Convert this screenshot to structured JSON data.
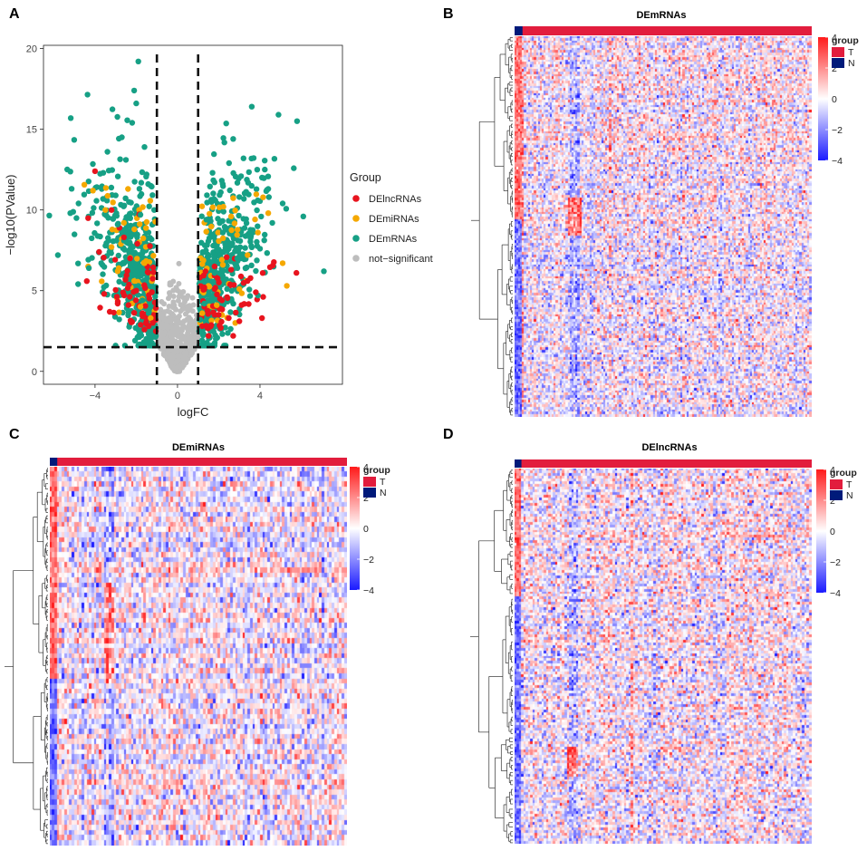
{
  "panels": {
    "A": "A",
    "B": "B",
    "C": "C",
    "D": "D"
  },
  "chart_data": [
    {
      "id": "A",
      "type": "scatter",
      "subtype": "volcano",
      "xlabel": "logFC",
      "ylabel": "−log10(PValue)",
      "xlim": [
        -6.5,
        8
      ],
      "ylim": [
        -0.8,
        20.2
      ],
      "xticks": [
        -4,
        0,
        4
      ],
      "xtick_labels": [
        "−4",
        "0",
        "4"
      ],
      "yticks": [
        0,
        5,
        10,
        15,
        20
      ],
      "ytick_labels": [
        "0",
        "5",
        "10",
        "15",
        "20"
      ],
      "thresholds": {
        "logFC": [
          -1,
          1
        ],
        "neg_log10_p": 1.5
      },
      "legend": {
        "title": "Group",
        "position": "right",
        "entries": [
          {
            "label": "DElncRNAs",
            "color": "#e8141e"
          },
          {
            "label": "DEmiRNAs",
            "color": "#f5a800"
          },
          {
            "label": "DEmRNAs",
            "color": "#16a085"
          },
          {
            "label": "not−significant",
            "color": "#bdbdbd"
          }
        ]
      },
      "series": [
        {
          "name": "DEmRNAs",
          "color": "#16a085",
          "points": [
            [
              -5.8,
              7.2
            ],
            [
              -5.2,
              9.8
            ],
            [
              -4.9,
              9.5
            ],
            [
              -4.8,
              10.4
            ],
            [
              -4.3,
              6.4
            ],
            [
              -3.6,
              12.3
            ],
            [
              -3.4,
              13.6
            ],
            [
              -3.0,
              10.9
            ],
            [
              -2.7,
              14.5
            ],
            [
              -2.5,
              13.1
            ],
            [
              -2.2,
              15.4
            ],
            [
              -2.1,
              17.4
            ],
            [
              -1.9,
              19.2
            ],
            [
              -2.0,
              16.6
            ],
            [
              -1.6,
              13.9
            ],
            [
              -1.5,
              12.2
            ],
            [
              -1.3,
              11.5
            ],
            [
              -2.6,
              8.1
            ],
            [
              -2.3,
              6.9
            ],
            [
              -1.9,
              5.3
            ],
            [
              -1.7,
              4.4
            ],
            [
              -1.4,
              3.6
            ],
            [
              -1.2,
              2.9
            ],
            [
              -3.3,
              7.4
            ],
            [
              -2.9,
              9.1
            ],
            [
              -1.8,
              9.7
            ],
            [
              1.4,
              9.4
            ],
            [
              1.7,
              12.3
            ],
            [
              2.1,
              11.1
            ],
            [
              2.5,
              12.9
            ],
            [
              2.7,
              14.4
            ],
            [
              3.2,
              13.2
            ],
            [
              3.6,
              16.4
            ],
            [
              4.1,
              12.0
            ],
            [
              4.4,
              11.3
            ],
            [
              4.6,
              9.2
            ],
            [
              4.9,
              15.9
            ],
            [
              5.1,
              10.4
            ],
            [
              5.8,
              15.5
            ],
            [
              6.1,
              9.6
            ],
            [
              7.1,
              6.2
            ],
            [
              3.0,
              10.8
            ],
            [
              2.2,
              8.6
            ],
            [
              1.8,
              6.1
            ],
            [
              2.4,
              5.1
            ],
            [
              1.3,
              4.2
            ],
            [
              1.1,
              3.2
            ],
            [
              3.3,
              6.4
            ],
            [
              4.0,
              7.6
            ],
            [
              2.9,
              7.0
            ],
            [
              3.9,
              4.7
            ]
          ]
        },
        {
          "name": "DEmiRNAs",
          "color": "#f5a800",
          "points": [
            [
              -4.1,
              11.2
            ],
            [
              -3.5,
              10.0
            ],
            [
              -3.2,
              7.7
            ],
            [
              -2.9,
              6.2
            ],
            [
              -2.6,
              9.2
            ],
            [
              -2.4,
              11.3
            ],
            [
              -2.1,
              5.6
            ],
            [
              -1.8,
              4.0
            ],
            [
              -1.6,
              6.7
            ],
            [
              -1.3,
              3.3
            ],
            [
              1.2,
              3.6
            ],
            [
              1.5,
              5.3
            ],
            [
              1.9,
              4.1
            ],
            [
              2.2,
              6.6
            ],
            [
              2.6,
              9.6
            ],
            [
              3.0,
              5.1
            ],
            [
              3.4,
              7.2
            ],
            [
              3.9,
              8.6
            ],
            [
              4.4,
              9.8
            ],
            [
              5.1,
              6.7
            ],
            [
              5.3,
              5.3
            ],
            [
              2.8,
              3.0
            ]
          ]
        },
        {
          "name": "DElncRNAs",
          "color": "#e8141e",
          "points": [
            [
              -4.0,
              12.4
            ],
            [
              -3.8,
              7.4
            ],
            [
              -3.2,
              10.0
            ],
            [
              -2.9,
              4.2
            ],
            [
              -2.6,
              8.3
            ],
            [
              -2.3,
              7.0
            ],
            [
              -2.0,
              5.0
            ],
            [
              -1.7,
              3.6
            ],
            [
              -1.4,
              2.8
            ],
            [
              -1.2,
              3.0
            ],
            [
              1.2,
              2.8
            ],
            [
              1.5,
              2.2
            ],
            [
              1.8,
              3.5
            ],
            [
              2.1,
              2.7
            ],
            [
              2.4,
              4.6
            ],
            [
              2.7,
              2.2
            ],
            [
              3.0,
              3.1
            ],
            [
              3.4,
              5.6
            ],
            [
              3.8,
              4.9
            ],
            [
              4.1,
              3.3
            ],
            [
              1.3,
              5.2
            ],
            [
              2.6,
              6.3
            ]
          ]
        }
      ]
    },
    {
      "id": "B",
      "type": "heatmap",
      "title": "DEmRNAs",
      "color_scale": {
        "min": -4,
        "max": 4,
        "colors": [
          "#1a1aff",
          "#ffffff",
          "#ff1a1a"
        ]
      },
      "colorbar_ticks": [
        "4",
        "2",
        "0",
        "−2",
        "−4"
      ],
      "annotation": {
        "title": "group",
        "entries": [
          {
            "label": "T",
            "color": "#e21d3d"
          },
          {
            "label": "N",
            "color": "#001a7a"
          }
        ]
      }
    },
    {
      "id": "C",
      "type": "heatmap",
      "title": "DEmiRNAs",
      "color_scale": {
        "min": -4,
        "max": 4,
        "colors": [
          "#1a1aff",
          "#ffffff",
          "#ff1a1a"
        ]
      },
      "colorbar_ticks": [
        "4",
        "2",
        "0",
        "−2",
        "−4"
      ],
      "annotation": {
        "title": "group",
        "entries": [
          {
            "label": "T",
            "color": "#e21d3d"
          },
          {
            "label": "N",
            "color": "#001a7a"
          }
        ]
      }
    },
    {
      "id": "D",
      "type": "heatmap",
      "title": "DElncRNAs",
      "color_scale": {
        "min": -4,
        "max": 4,
        "colors": [
          "#1a1aff",
          "#ffffff",
          "#ff1a1a"
        ]
      },
      "colorbar_ticks": [
        "4",
        "2",
        "0",
        "−2",
        "−4"
      ],
      "annotation": {
        "title": "group",
        "entries": [
          {
            "label": "T",
            "color": "#e21d3d"
          },
          {
            "label": "N",
            "color": "#001a7a"
          }
        ]
      }
    }
  ]
}
